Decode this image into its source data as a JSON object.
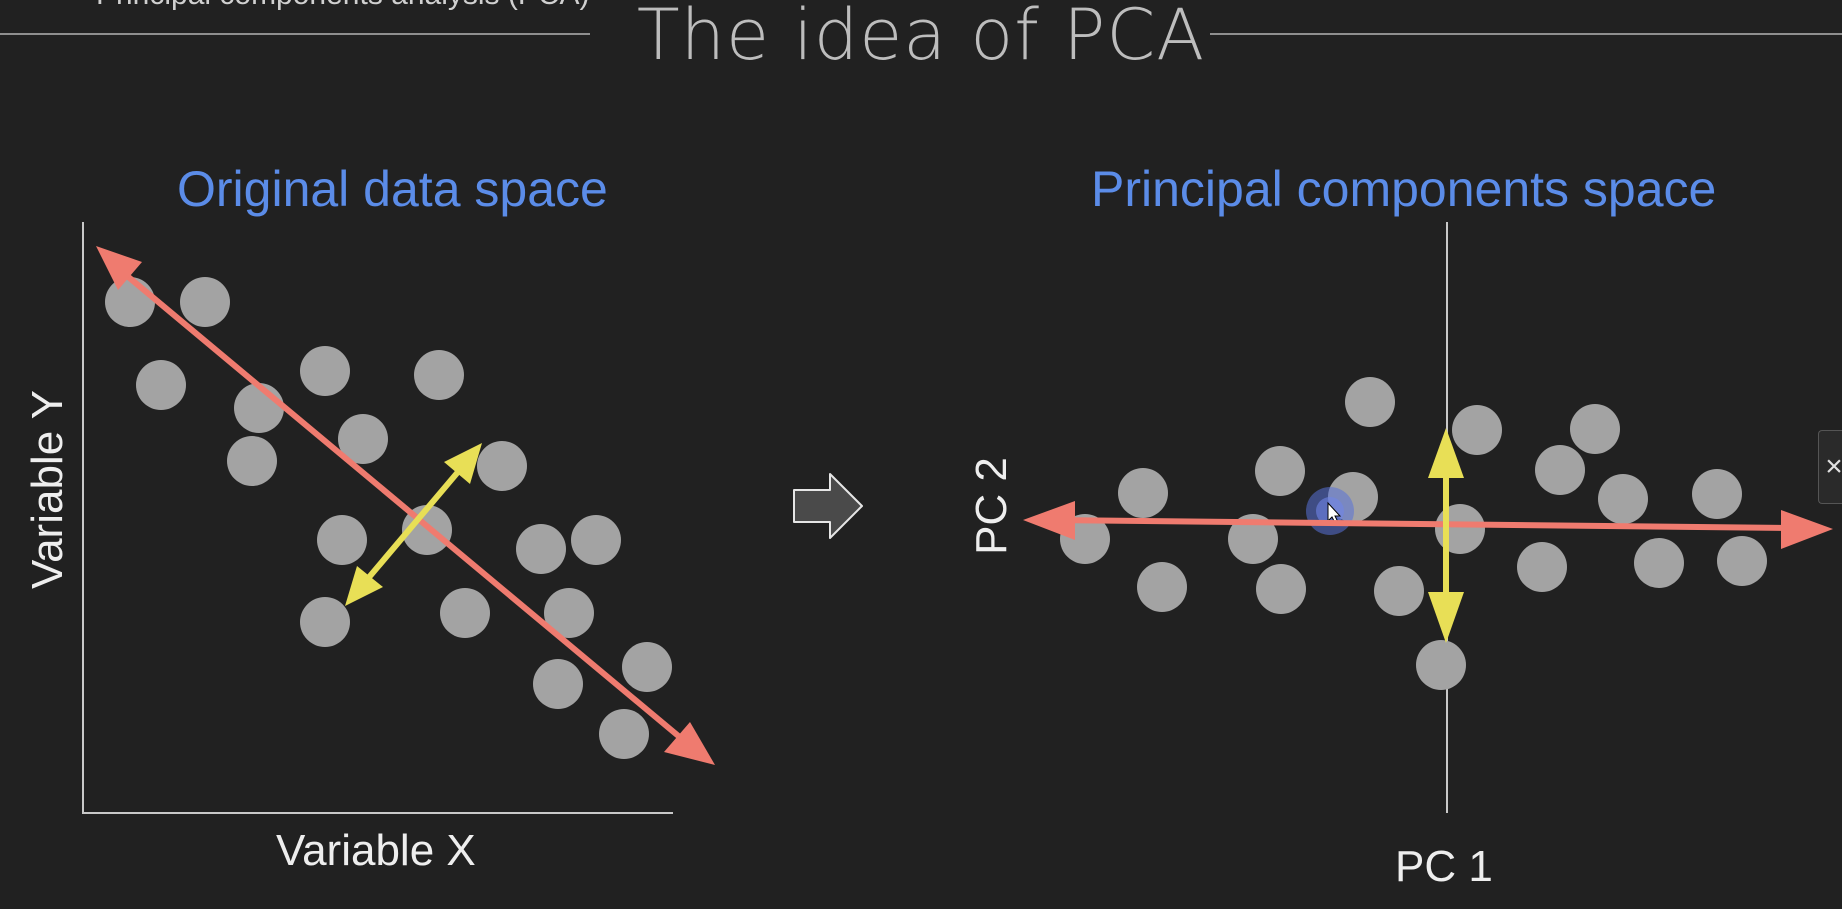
{
  "slide": {
    "title": "The idea of PCA",
    "clipped_header_text": "Principal components analysis (PCA)"
  },
  "left_panel": {
    "title": "Original data space",
    "x_label": "Variable X",
    "y_label": "Variable Y"
  },
  "right_panel": {
    "title": "Principal components space",
    "x_label": "PC 1",
    "y_label": "PC 2"
  },
  "transition": {
    "icon": "right-arrow-icon"
  },
  "close_tab": {
    "icon": "close-icon",
    "label": "×"
  },
  "colors": {
    "background": "#212121",
    "title_text": "#bdbdbd",
    "panel_title": "#5b8ce8",
    "axis_text": "#eeeeee",
    "points": "#a3a3a3",
    "pc1_arrow": "#ef7b6f",
    "pc2_arrow": "#e8df56",
    "axis_lines": "#c8c8c8"
  }
}
